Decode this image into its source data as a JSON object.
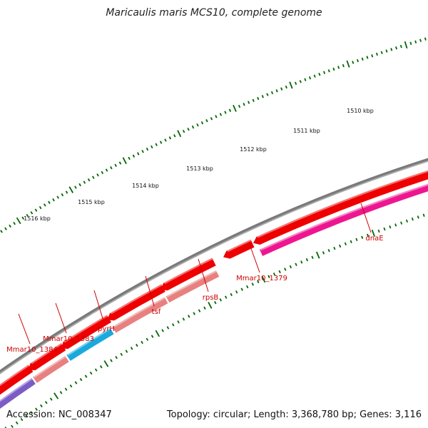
{
  "title": "Maricaulis maris MCS10, complete genome",
  "footer": {
    "accession": "Accession: NC_008347",
    "info": "Topology: circular; Length: 3,368,780 bp; Genes: 3,116"
  },
  "ticks": [
    "1510 kbp",
    "1511 kbp",
    "1512 kbp",
    "1513 kbp",
    "1514 kbp",
    "1515 kbp",
    "1516 kbp"
  ],
  "gene_labels": [
    "dnaE",
    "Mmar10_1379",
    "rpsB",
    "tsf",
    "pyrH",
    "Mmar10_1383",
    "Mmar10_1384"
  ],
  "colors": {
    "backbone": "#7a7a7a",
    "gene_red": "#ee0000",
    "dnaE_feature": "#ee1690",
    "rpsB_tsf_feature": "#e88080",
    "pyrH_feature": "#1aa9dd",
    "mmar1383_feature": "#e88080",
    "mmar1384_feature": "#7b5cc6",
    "tick_green": "#006600",
    "label_red": "#cc0000"
  }
}
